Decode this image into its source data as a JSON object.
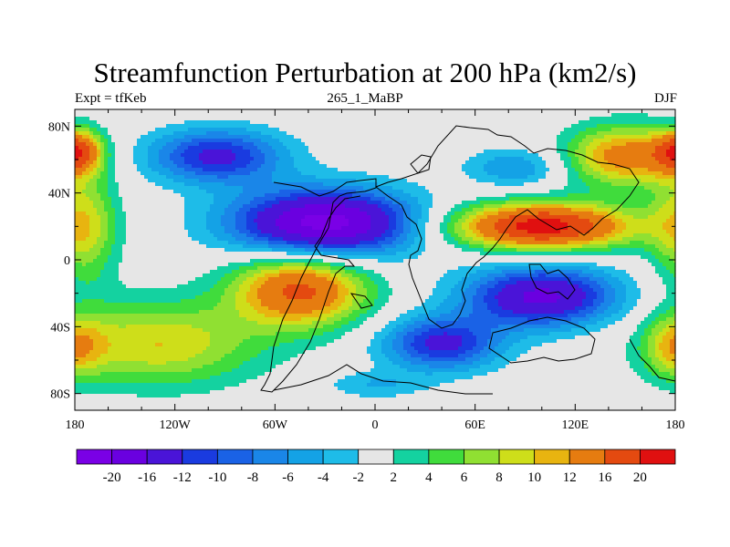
{
  "title": "Streamfunction Perturbation at 200 hPa (km2/s)",
  "left_label": "Expt = tfKeb",
  "center_label": "265_1_MaBP",
  "right_label": "DJF",
  "x_ticks": [
    {
      "lon": -180,
      "label": "180"
    },
    {
      "lon": -120,
      "label": "120W"
    },
    {
      "lon": -60,
      "label": "60W"
    },
    {
      "lon": 0,
      "label": "0"
    },
    {
      "lon": 60,
      "label": "60E"
    },
    {
      "lon": 120,
      "label": "120E"
    },
    {
      "lon": 180,
      "label": "180"
    }
  ],
  "y_ticks": [
    {
      "lat": 80,
      "label": "80N"
    },
    {
      "lat": 40,
      "label": "40N"
    },
    {
      "lat": 0,
      "label": "0"
    },
    {
      "lat": -40,
      "label": "40S"
    },
    {
      "lat": -80,
      "label": "80S"
    }
  ],
  "lon_range": [
    -180,
    180
  ],
  "lat_range": [
    -90,
    90
  ],
  "colorbar": {
    "colors": [
      "#7a00e6",
      "#6a00e0",
      "#4a14d8",
      "#1a3be0",
      "#1a62e6",
      "#1a86e8",
      "#14a2e6",
      "#1ebce8",
      "#e6e6e6",
      "#14d2a0",
      "#40dc3c",
      "#90e032",
      "#cede1a",
      "#e8b410",
      "#e67c10",
      "#e44a10",
      "#e01010"
    ],
    "labels": [
      "-20",
      "-16",
      "-12",
      "-10",
      "-8",
      "-6",
      "-4",
      "-2",
      "2",
      "4",
      "6",
      "8",
      "10",
      "12",
      "16",
      "20"
    ]
  },
  "field_blobs": [
    {
      "lon": -95,
      "lat": 62,
      "rlon": 40,
      "rlat": 16,
      "amp": -13
    },
    {
      "lon": -30,
      "lat": 22,
      "rlon": 55,
      "rlat": 20,
      "amp": -22
    },
    {
      "lon": -45,
      "lat": -18,
      "rlon": 40,
      "rlat": 22,
      "amp": 17
    },
    {
      "lon": -130,
      "lat": -50,
      "rlon": 60,
      "rlat": 25,
      "amp": 10
    },
    {
      "lon": 100,
      "lat": 20,
      "rlon": 55,
      "rlat": 14,
      "amp": 22
    },
    {
      "lon": 150,
      "lat": 62,
      "rlon": 35,
      "rlat": 18,
      "amp": 14
    },
    {
      "lon": 85,
      "lat": 55,
      "rlon": 30,
      "rlat": 12,
      "amp": -6
    },
    {
      "lon": 100,
      "lat": -22,
      "rlon": 45,
      "rlat": 18,
      "amp": -17
    },
    {
      "lon": 40,
      "lat": -50,
      "rlon": 35,
      "rlat": 16,
      "amp": -13
    },
    {
      "lon": -175,
      "lat": 20,
      "rlon": 20,
      "rlat": 35,
      "amp": 9
    },
    {
      "lon": -178,
      "lat": 65,
      "rlon": 14,
      "rlat": 12,
      "amp": 14
    },
    {
      "lon": 180,
      "lat": -52,
      "rlon": 18,
      "rlat": 18,
      "amp": 8
    },
    {
      "lon": 0,
      "lat": -75,
      "rlon": 30,
      "rlat": 8,
      "amp": -4
    }
  ]
}
